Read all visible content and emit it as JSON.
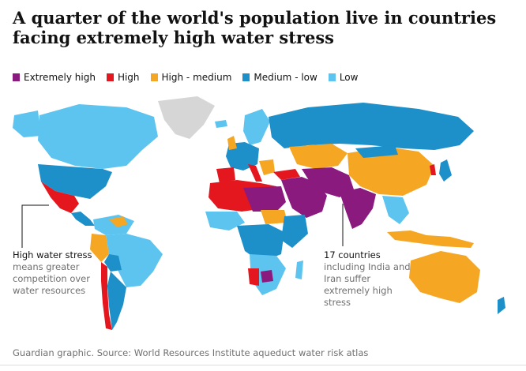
{
  "title": "A quarter of the world's population live in countries facing extremely high water stress",
  "legend": [
    {
      "label": "Extremely high",
      "color": "#8b1a7f"
    },
    {
      "label": "High",
      "color": "#e4161e"
    },
    {
      "label": "High - medium",
      "color": "#f5a623"
    },
    {
      "label": "Medium - low",
      "color": "#1d8fc9"
    },
    {
      "label": "Low",
      "color": "#5cc4ef"
    }
  ],
  "no_data_color": "#d6d6d6",
  "annotations": {
    "left": {
      "heading": "High water stress",
      "body": "means greater competition over water resources"
    },
    "right": {
      "heading": "17 countries",
      "body": "including India and Iran suffer extremely high stress"
    }
  },
  "source": "Guardian graphic. Source: World Resources Institute aqueduct water risk atlas"
}
